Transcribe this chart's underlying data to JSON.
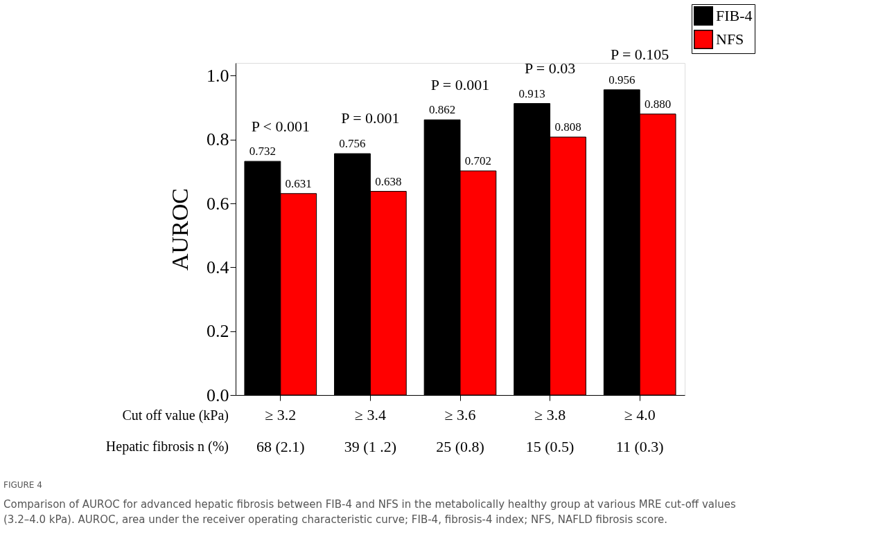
{
  "chart_data": {
    "type": "bar",
    "ylabel": "AUROC",
    "xlabel": "Cut off value (kPa)",
    "categories": [
      "≥ 3.2",
      "≥ 3.4",
      "≥ 3.6",
      "≥ 3.8",
      "≥ 4.0"
    ],
    "series": [
      {
        "name": "FIB-4",
        "color": "#000000",
        "values": [
          0.732,
          0.756,
          0.862,
          0.913,
          0.956
        ],
        "value_labels": [
          "0.732",
          "0.756",
          "0.862",
          "0.913",
          "0.956"
        ]
      },
      {
        "name": "NFS",
        "color": "#ff0000",
        "values": [
          0.631,
          0.638,
          0.702,
          0.808,
          0.88
        ],
        "value_labels": [
          "0.631",
          "0.638",
          "0.702",
          "0.808",
          "0.880"
        ]
      }
    ],
    "ylim": [
      0,
      1.04
    ],
    "yticks": [
      {
        "value": 0,
        "label": "0.0"
      },
      0.2,
      0.4,
      0.6,
      0.8,
      {
        "value": 1,
        "label": "1.0"
      }
    ],
    "grid": false,
    "legend": "top right",
    "annotations": [
      "P < 0.001",
      "P = 0.001",
      "P = 0.001",
      "P = 0.03",
      "P = 0.105",
      "Hepatic fibrosis n (%)",
      "68 (2.1)",
      "39 (1 .2)",
      "25 (0.8)",
      "15 (0.5)",
      "11 (0.3)",
      "FIGURE 4",
      "Comparison of AUROC for advanced hepatic fibrosis between FIB-4 and NFS in the metabolically healthy group at various MRE cut-off values",
      "(3.2–4.0 kPa). AUROC, area under the receiver operating characteristic curve; FIB-4, fibrosis-4 index; NFS, NAFLD fibrosis score."
    ]
  }
}
